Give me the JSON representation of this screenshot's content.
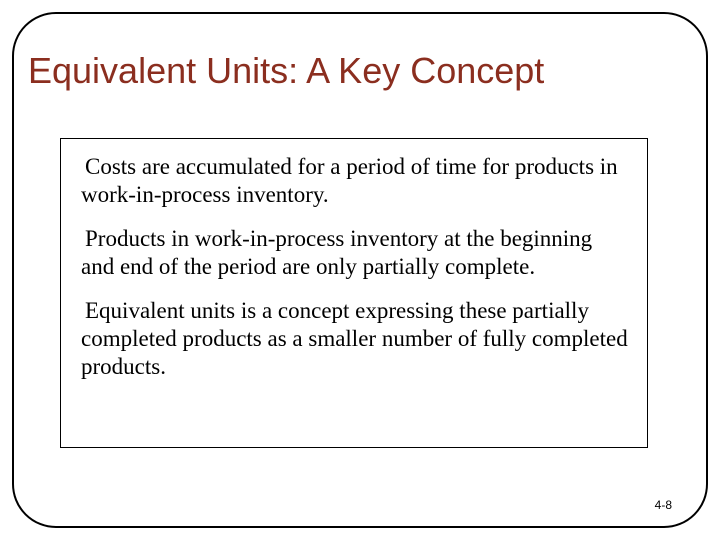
{
  "slide": {
    "title": "Equivalent Units:  A Key Concept",
    "title_color": "#8b2e1f",
    "title_fontsize": 36,
    "frame_border_color": "#000000",
    "frame_border_radius": 44,
    "background_color": "#ffffff",
    "content_box": {
      "border_color": "#000000",
      "background_color": "#ffffff",
      "body_fontsize": 23,
      "body_font": "Times New Roman",
      "paragraphs": [
        "Costs are accumulated for a period of time for products in work-in-process inventory.",
        "Products in work-in-process inventory at the beginning and end of the period are only partially complete.",
        "Equivalent units is a concept expressing these partially completed products as a smaller number of fully completed products."
      ]
    },
    "footer": {
      "text": "4-8",
      "fontsize": 12
    }
  }
}
